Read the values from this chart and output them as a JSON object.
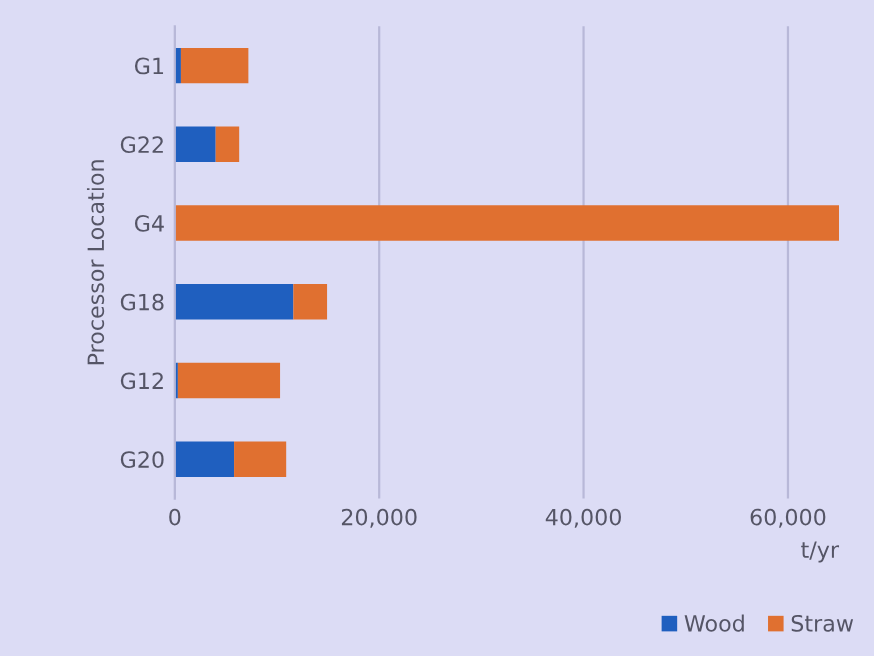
{
  "chart_data": {
    "type": "bar",
    "orientation": "horizontal",
    "stacked": true,
    "categories": [
      "G1",
      "G22",
      "G4",
      "G18",
      "G12",
      "G20"
    ],
    "series": [
      {
        "name": "Wood",
        "color": "#1f5fbf",
        "values": [
          600,
          4000,
          0,
          11600,
          300,
          5800
        ]
      },
      {
        "name": "Straw",
        "color": "#e07030",
        "values": [
          6600,
          2300,
          65000,
          3300,
          10000,
          5100
        ]
      }
    ],
    "xlabel": "t/yr",
    "ylabel": "Processor Location",
    "xlim": [
      0,
      65000
    ],
    "xticks": [
      {
        "value": 0,
        "label": "0"
      },
      {
        "value": 20000,
        "label": "20,000"
      },
      {
        "value": 40000,
        "label": "40,000"
      },
      {
        "value": 60000,
        "label": "60,000"
      }
    ],
    "grid": "x",
    "legend": "bottom right"
  }
}
